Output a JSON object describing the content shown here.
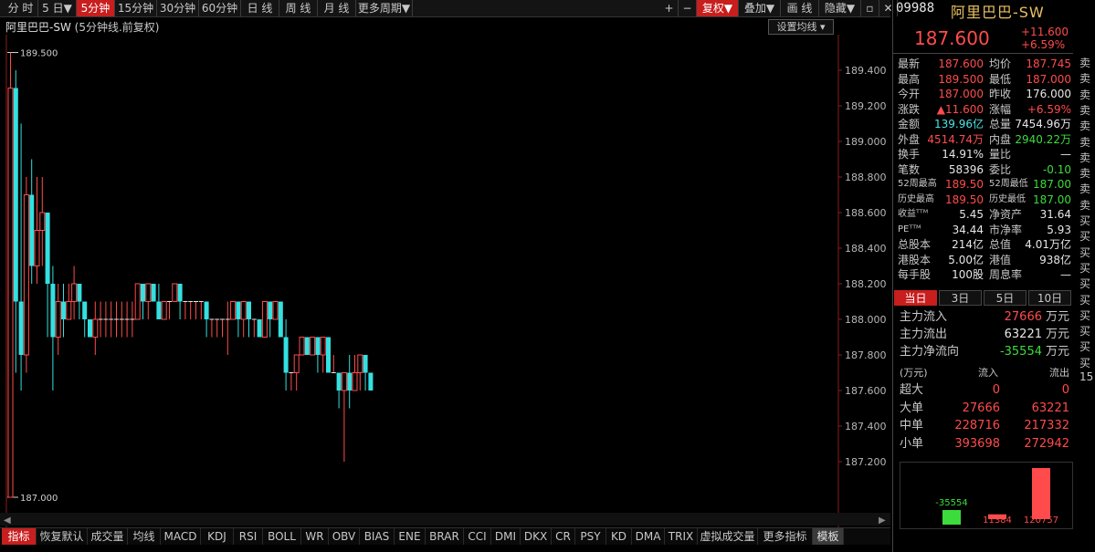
{
  "toolbar": {
    "tabs": [
      {
        "label": "分 时",
        "active": false
      },
      {
        "label": "5 日▼",
        "active": false
      },
      {
        "label": "5分钟",
        "active": true
      },
      {
        "label": "15分钟",
        "active": false
      },
      {
        "label": "30分钟",
        "active": false
      },
      {
        "label": "60分钟",
        "active": false
      },
      {
        "label": "日 线",
        "active": false
      },
      {
        "label": "周 线",
        "active": false
      },
      {
        "label": "月 线",
        "active": false
      },
      {
        "label": "更多周期▼",
        "active": false
      }
    ],
    "right_buttons": [
      {
        "label": "+"
      },
      {
        "label": "−"
      },
      {
        "label": "复权▼"
      },
      {
        "label": "叠加▼"
      },
      {
        "label": "画 线"
      },
      {
        "label": "隐藏▼"
      },
      {
        "label": "▫"
      },
      {
        "label": "✕"
      }
    ]
  },
  "chart": {
    "stock_name": "阿里巴巴-SW",
    "subtitle": "(5分钟线.前复权)",
    "ma_button": "设置均线",
    "high_label": "189.500",
    "low_label": "187.000"
  },
  "chart_data": {
    "type": "candlestick",
    "ylim": [
      187.1,
      189.5
    ],
    "y_ticks": [
      "189.400",
      "189.200",
      "189.000",
      "188.800",
      "188.600",
      "188.400",
      "188.200",
      "188.000",
      "187.800",
      "187.600",
      "187.400",
      "187.200"
    ],
    "tick_values": [
      189.4,
      189.2,
      189.0,
      188.8,
      188.6,
      188.4,
      188.2,
      188.0,
      187.8,
      187.6,
      187.4,
      187.2
    ],
    "candles": [
      [
        187.0,
        189.3,
        187.0,
        189.5
      ],
      [
        189.3,
        188.1,
        187.7,
        189.4
      ],
      [
        188.1,
        187.8,
        187.6,
        189.1
      ],
      [
        187.8,
        188.7,
        187.7,
        188.8
      ],
      [
        188.7,
        188.3,
        188.2,
        188.9
      ],
      [
        188.3,
        188.5,
        188.2,
        188.8
      ],
      [
        188.5,
        188.6,
        188.3,
        188.8
      ],
      [
        188.6,
        188.2,
        187.9,
        188.6
      ],
      [
        188.2,
        187.9,
        187.6,
        188.3
      ],
      [
        187.9,
        188.1,
        187.8,
        188.2
      ],
      [
        188.1,
        188.0,
        187.9,
        188.2
      ],
      [
        188.0,
        188.1,
        188.0,
        188.2
      ],
      [
        188.1,
        188.2,
        188.0,
        188.3
      ],
      [
        188.2,
        188.1,
        188.0,
        188.2
      ],
      [
        188.1,
        188.0,
        187.9,
        188.1
      ],
      [
        188.0,
        187.9,
        187.9,
        188.0
      ],
      [
        187.9,
        188.0,
        187.8,
        188.1
      ],
      [
        188.0,
        188.0,
        187.9,
        188.1
      ],
      [
        188.0,
        188.0,
        187.9,
        188.1
      ],
      [
        188.0,
        188.0,
        187.9,
        188.1
      ],
      [
        188.0,
        188.0,
        187.9,
        188.1
      ],
      [
        188.0,
        188.0,
        187.9,
        188.1
      ],
      [
        188.0,
        188.0,
        187.9,
        188.1
      ],
      [
        188.0,
        188.0,
        187.9,
        188.1
      ],
      [
        188.0,
        188.2,
        188.0,
        188.2
      ],
      [
        188.2,
        188.1,
        188.0,
        188.2
      ],
      [
        188.1,
        188.2,
        188.0,
        188.2
      ],
      [
        188.2,
        188.1,
        188.1,
        188.2
      ],
      [
        188.1,
        188.0,
        188.0,
        188.2
      ],
      [
        188.0,
        188.1,
        188.0,
        188.1
      ],
      [
        188.1,
        188.1,
        188.0,
        188.1
      ],
      [
        188.1,
        188.2,
        188.1,
        188.2
      ],
      [
        188.2,
        188.1,
        188.0,
        188.2
      ],
      [
        188.1,
        188.1,
        188.0,
        188.1
      ],
      [
        188.1,
        188.1,
        188.0,
        188.1
      ],
      [
        188.1,
        188.1,
        188.0,
        188.1
      ],
      [
        188.1,
        188.1,
        188.0,
        188.1
      ],
      [
        188.1,
        188.0,
        187.9,
        188.1
      ],
      [
        188.0,
        188.0,
        187.9,
        188.0
      ],
      [
        188.0,
        188.0,
        187.9,
        188.0
      ],
      [
        188.0,
        188.0,
        187.9,
        188.0
      ],
      [
        188.0,
        188.0,
        187.8,
        188.1
      ],
      [
        188.0,
        188.1,
        188.0,
        188.1
      ],
      [
        188.1,
        188.0,
        187.9,
        188.1
      ],
      [
        188.0,
        188.1,
        187.9,
        188.1
      ],
      [
        188.1,
        188.0,
        187.9,
        188.1
      ],
      [
        188.0,
        188.0,
        187.9,
        188.0
      ],
      [
        188.0,
        187.9,
        187.9,
        188.0
      ],
      [
        187.9,
        188.1,
        187.9,
        188.1
      ],
      [
        188.1,
        188.0,
        187.9,
        188.1
      ],
      [
        188.0,
        188.1,
        188.0,
        188.1
      ],
      [
        188.1,
        187.9,
        187.9,
        188.1
      ],
      [
        187.9,
        187.7,
        187.6,
        188.0
      ],
      [
        187.7,
        187.7,
        187.6,
        187.7
      ],
      [
        187.7,
        187.8,
        187.6,
        187.8
      ],
      [
        187.8,
        187.9,
        187.8,
        187.9
      ],
      [
        187.9,
        187.8,
        187.8,
        187.9
      ],
      [
        187.8,
        187.9,
        187.8,
        187.9
      ],
      [
        187.9,
        187.8,
        187.7,
        187.9
      ],
      [
        187.8,
        187.9,
        187.7,
        187.9
      ],
      [
        187.9,
        187.7,
        187.7,
        187.9
      ],
      [
        187.7,
        187.7,
        187.7,
        187.8
      ],
      [
        187.7,
        187.6,
        187.5,
        187.7
      ],
      [
        187.6,
        187.7,
        187.2,
        187.7
      ],
      [
        187.7,
        187.6,
        187.5,
        187.8
      ],
      [
        187.6,
        187.7,
        187.6,
        187.8
      ],
      [
        187.7,
        187.8,
        187.6,
        187.8
      ],
      [
        187.8,
        187.7,
        187.6,
        187.8
      ],
      [
        187.7,
        187.6,
        187.6,
        187.7
      ]
    ]
  },
  "indicators": [
    "指标",
    "恢复默认",
    "成交量",
    "均线",
    "MACD",
    "KDJ",
    "RSI",
    "BOLL",
    "WR",
    "OBV",
    "BIAS",
    "ENE",
    "BRAR",
    "CCI",
    "DMI",
    "DKX",
    "CR",
    "PSY",
    "KD",
    "DMA",
    "TRIX",
    "虚拟成交量",
    "更多指标",
    "模板"
  ],
  "quote": {
    "code": "09988",
    "name": "阿里巴巴-SW",
    "price": "187.600",
    "change": "+11.600",
    "change_pct": "+6.59%"
  },
  "stats": [
    {
      "l1": "最新",
      "v1": "187.600",
      "c1": "red",
      "l2": "均价",
      "v2": "187.745",
      "c2": "red"
    },
    {
      "l1": "最高",
      "v1": "189.500",
      "c1": "red",
      "l2": "最低",
      "v2": "187.000",
      "c2": "red"
    },
    {
      "l1": "今开",
      "v1": "187.000",
      "c1": "red",
      "l2": "昨收",
      "v2": "176.000",
      "c2": "wht"
    },
    {
      "l1": "涨跌",
      "v1": "▲11.600",
      "c1": "red",
      "l2": "涨幅",
      "v2": "+6.59%",
      "c2": "red"
    },
    {
      "l1": "金额",
      "v1": "139.96亿",
      "c1": "cyan",
      "l2": "总量",
      "v2": "7454.96万",
      "c2": "wht"
    },
    {
      "l1": "外盘",
      "v1": "4514.74万",
      "c1": "red",
      "l2": "内盘",
      "v2": "2940.22万",
      "c2": "grn"
    },
    {
      "l1": "换手",
      "v1": "14.91%",
      "c1": "wht",
      "l2": "量比",
      "v2": "—",
      "c2": "wht"
    },
    {
      "l1": "笔数",
      "v1": "58396",
      "c1": "wht",
      "l2": "委比",
      "v2": "-0.10",
      "c2": "grn"
    },
    {
      "l1": "52周最高",
      "v1": "189.50",
      "c1": "red",
      "l2": "52周最低",
      "v2": "187.00",
      "c2": "grn"
    },
    {
      "l1": "历史最高",
      "v1": "189.50",
      "c1": "red",
      "l2": "历史最低",
      "v2": "187.00",
      "c2": "grn"
    },
    {
      "l1": "收益ᵀᵀᴹ",
      "v1": "5.45",
      "c1": "wht",
      "l2": "净资产",
      "v2": "31.64",
      "c2": "wht"
    },
    {
      "l1": "PEᵀᵀᴹ",
      "v1": "34.44",
      "c1": "wht",
      "l2": "市净率",
      "v2": "5.93",
      "c2": "wht"
    },
    {
      "l1": "总股本",
      "v1": "214亿",
      "c1": "wht",
      "l2": "总值",
      "v2": "4.01万亿",
      "c2": "wht"
    },
    {
      "l1": "港股本",
      "v1": "5.00亿",
      "c1": "wht",
      "l2": "港值",
      "v2": "938亿",
      "c2": "wht"
    },
    {
      "l1": "每手股",
      "v1": "100股",
      "c1": "wht",
      "l2": "周息率",
      "v2": "—",
      "c2": "wht"
    }
  ],
  "flow_tabs": [
    "当日",
    "3日",
    "5日",
    "10日"
  ],
  "flow": [
    {
      "label": "主力流入",
      "value": "27666",
      "unit": "万元",
      "color": "red"
    },
    {
      "label": "主力流出",
      "value": "63221",
      "unit": "万元",
      "color": "wht"
    },
    {
      "label": "主力净流向",
      "value": "-35554",
      "unit": "万元",
      "color": "grn"
    }
  ],
  "flow_table": {
    "headers": [
      "(万元)",
      "流入",
      "流出"
    ],
    "rows": [
      {
        "label": "超大",
        "in": "0",
        "out": "0"
      },
      {
        "label": "大单",
        "in": "27666",
        "out": "63221"
      },
      {
        "label": "中单",
        "in": "228716",
        "out": "217332"
      },
      {
        "label": "小单",
        "in": "393698",
        "out": "272942"
      }
    ]
  },
  "flow_bars": [
    {
      "label": "-35554",
      "value": -35554,
      "color": "#3cdc3c"
    },
    {
      "label": "11384",
      "value": 11384,
      "color": "#ff4b4b"
    },
    {
      "label": "120757",
      "value": 120757,
      "color": "#ff4b4b"
    }
  ],
  "side_column": [
    "卖",
    "卖",
    "卖",
    "卖",
    "卖",
    "卖",
    "卖",
    "卖",
    "卖",
    "卖",
    "买",
    "买",
    "买",
    "买",
    "买",
    "买",
    "买",
    "买",
    "买",
    "买",
    "15"
  ]
}
